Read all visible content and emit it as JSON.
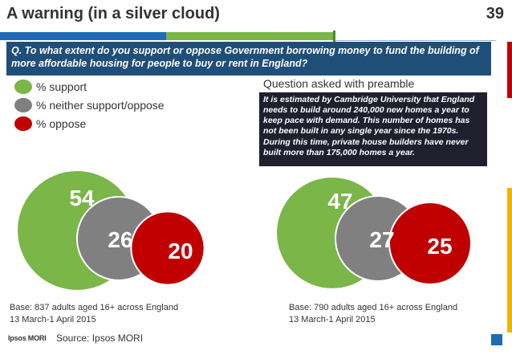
{
  "header": {
    "title": "A warning (in a silver cloud)",
    "page_number": "39"
  },
  "question": "Q. To what extent do you support or oppose Government borrowing money to fund  the building of more affordable housing for people to buy or rent in England?",
  "legend": [
    {
      "label": "% support",
      "color": "#7ab648"
    },
    {
      "label": "% neither support/oppose",
      "color": "#808080"
    },
    {
      "label": "% oppose",
      "color": "#c00000"
    }
  ],
  "preamble": {
    "heading": "Question asked with preamble",
    "text": "It is estimated by Cambridge University that England needs to build around 240,000 new homes a year to keep pace with demand. This number of homes has not been built in any single year since the 1970s. During this time, private house builders have never built more than 175,000 homes a year."
  },
  "chart_data": [
    {
      "type": "venn",
      "series": [
        {
          "name": "% support",
          "value": 54,
          "color": "#7ab648"
        },
        {
          "name": "% neither support/oppose",
          "value": 26,
          "color": "#808080"
        },
        {
          "name": "% oppose",
          "value": 20,
          "color": "#c00000"
        }
      ]
    },
    {
      "type": "venn",
      "series": [
        {
          "name": "% support",
          "value": 47,
          "color": "#7ab648"
        },
        {
          "name": "% neither support/oppose",
          "value": 27,
          "color": "#808080"
        },
        {
          "name": "% oppose",
          "value": 25,
          "color": "#c00000"
        }
      ]
    }
  ],
  "bases": {
    "left": {
      "line1": "Base: 837 adults aged 16+ across England",
      "line2": "13 March-1 April 2015"
    },
    "right": {
      "line1": "Base: 790 adults aged 16+ across England",
      "line2": "13 March-1 April 2015"
    }
  },
  "footer": {
    "logo": "Ipsos MORI",
    "source": "Source: Ipsos MORI"
  }
}
